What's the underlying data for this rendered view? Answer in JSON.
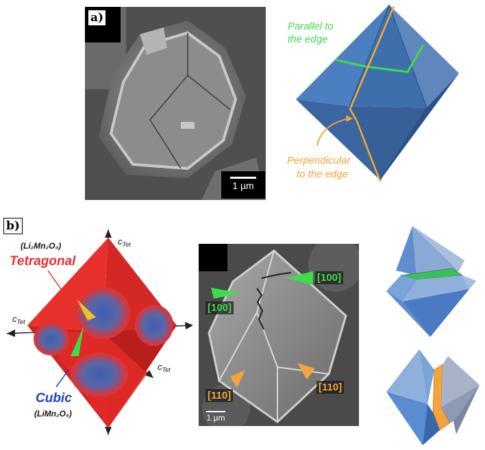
{
  "panel_a": {
    "label": "a)",
    "scale_bar": "1 µm",
    "annotations": {
      "parallel_line1": "Parallel to",
      "parallel_line2": "the edge",
      "perp_line1": "Perpendicular",
      "perp_line2": "to the edge"
    }
  },
  "panel_b": {
    "label": "b)",
    "axis_label": "c",
    "axis_sub": "Tet",
    "tetragonal_formula": "(Li₂Mn₂O₄)",
    "tetragonal_label": "Tetragonal",
    "cubic_label": "Cubic",
    "cubic_formula": "(LiMn₂O₄)",
    "scale_bar": "1 µm",
    "tags": {
      "tag_100_right": "[100]",
      "tag_100_left": "[100]",
      "tag_110_left": "[110]",
      "tag_110_right": "[110]"
    }
  },
  "colors": {
    "octa_blue": "#4a78b8",
    "tetragonal_red": "#e8302d",
    "cubic_blue": "#1f3fbf",
    "green": "#3ddc4a",
    "orange": "#f4a43a"
  }
}
